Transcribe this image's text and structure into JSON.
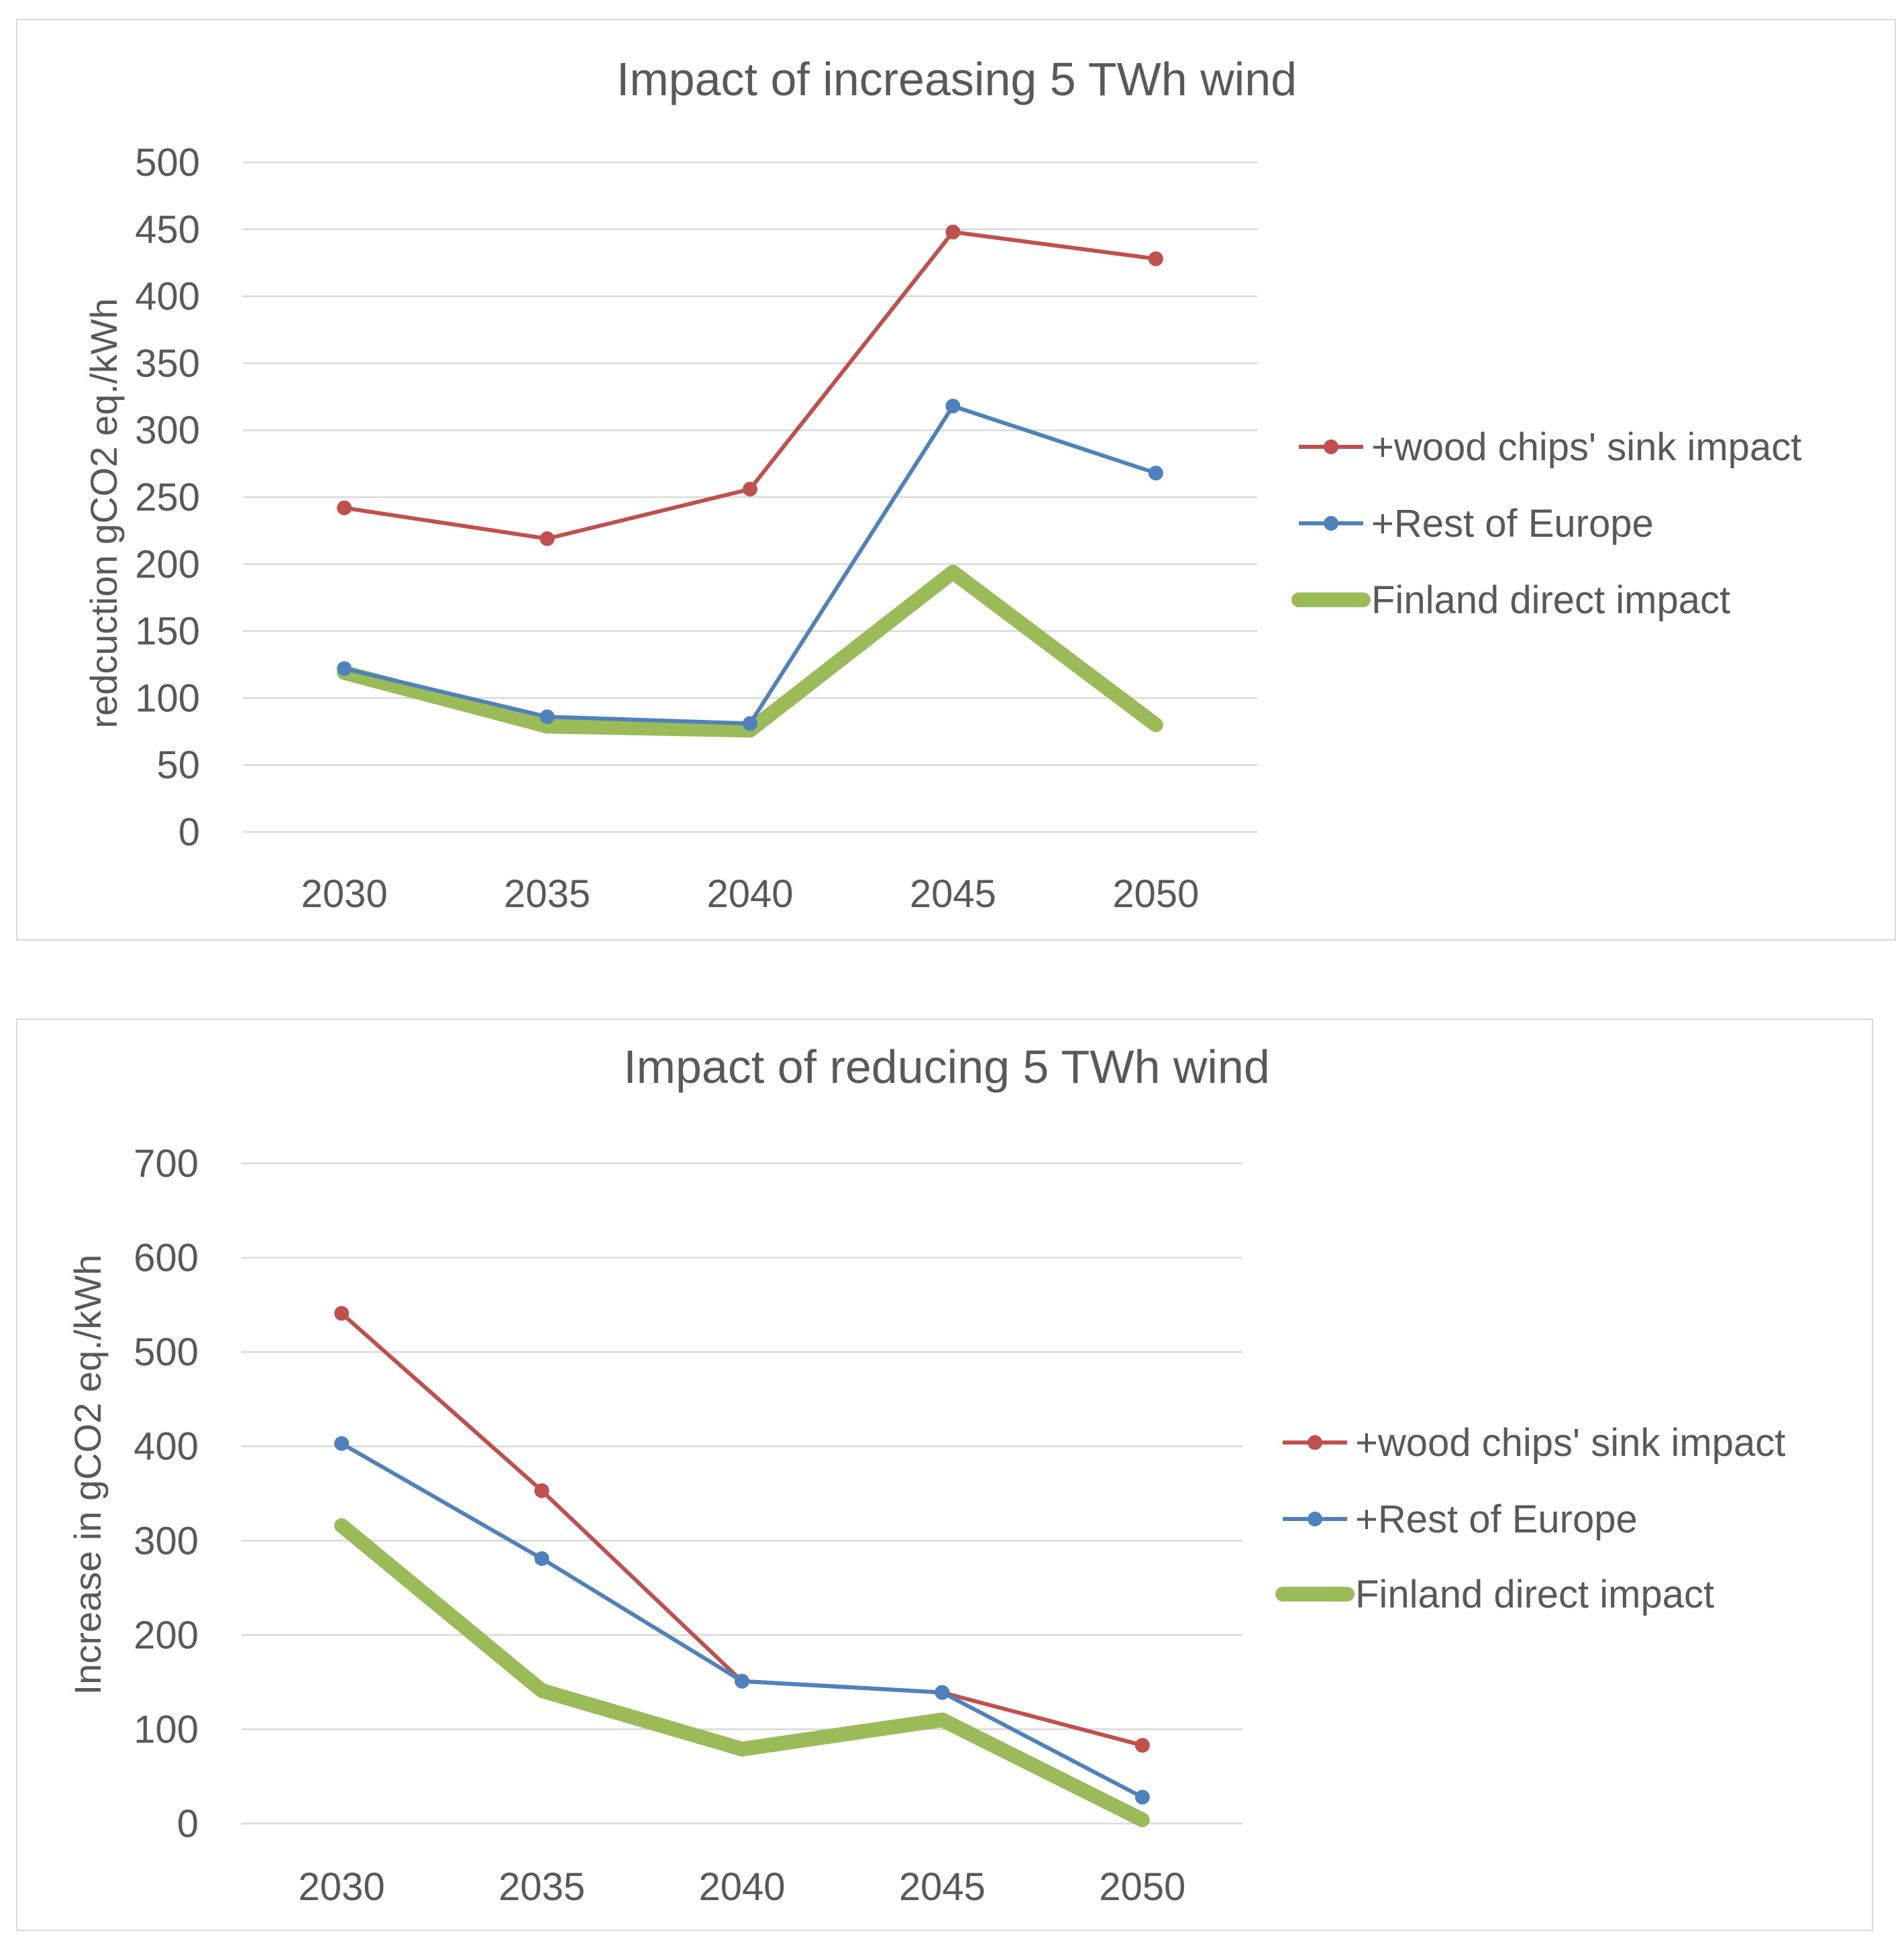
{
  "chart_data": [
    {
      "type": "line",
      "title": "Impact of increasing 5 TWh wind",
      "xlabel": "",
      "ylabel": "redcuction gCO2 eq./kWh",
      "categories": [
        "2030",
        "2035",
        "2040",
        "2045",
        "2050"
      ],
      "ylim": [
        0,
        500
      ],
      "yticks": [
        0,
        50,
        100,
        150,
        200,
        250,
        300,
        350,
        400,
        450,
        500
      ],
      "grid": true,
      "legend_position": "right",
      "series": [
        {
          "name": "+wood chips' sink impact",
          "values": [
            242,
            219,
            256,
            448,
            428
          ],
          "color": "#c0504d",
          "markers": true,
          "thick": false
        },
        {
          "name": "+Rest of Europe",
          "values": [
            122,
            86,
            81,
            318,
            268
          ],
          "color": "#4f81bd",
          "markers": true,
          "thick": false
        },
        {
          "name": "Finland direct impact",
          "values": [
            119,
            79,
            76,
            194,
            80
          ],
          "color": "#9bbb59",
          "markers": false,
          "thick": true
        }
      ]
    },
    {
      "type": "line",
      "title": "Impact of reducing 5 TWh wind",
      "xlabel": "",
      "ylabel": "Increase in gCO2 eq./kWh",
      "categories": [
        "2030",
        "2035",
        "2040",
        "2045",
        "2050"
      ],
      "ylim": [
        0,
        700
      ],
      "yticks": [
        0,
        100,
        200,
        300,
        400,
        500,
        600,
        700
      ],
      "grid": true,
      "legend_position": "right",
      "series": [
        {
          "name": "+wood chips' sink impact",
          "values": [
            541,
            353,
            151,
            139,
            83
          ],
          "color": "#c0504d",
          "markers": true,
          "thick": false
        },
        {
          "name": "+Rest of Europe",
          "values": [
            403,
            281,
            151,
            139,
            28
          ],
          "color": "#4f81bd",
          "markers": true,
          "thick": false
        },
        {
          "name": "Finland direct impact",
          "values": [
            316,
            141,
            79,
            110,
            4
          ],
          "color": "#9bbb59",
          "markers": false,
          "thick": true
        }
      ]
    }
  ]
}
